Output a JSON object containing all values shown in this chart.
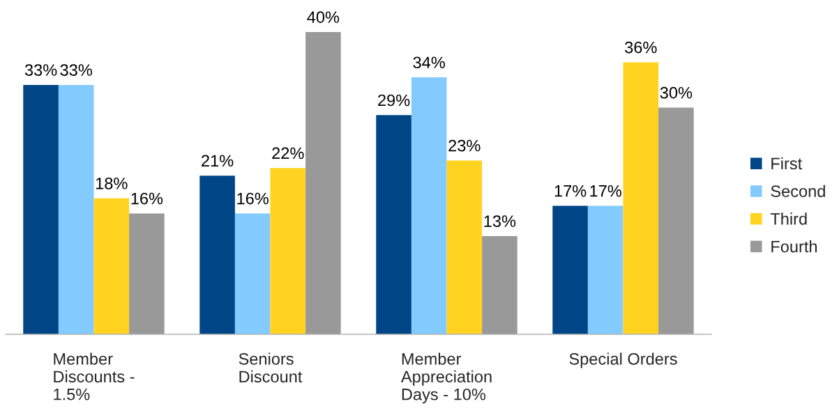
{
  "chart_data": {
    "type": "bar",
    "categories": [
      "Member\nDiscounts -\n1.5%",
      "Seniors\nDiscount",
      "Member\nAppreciation\nDays - 10%",
      "Special Orders"
    ],
    "series": [
      {
        "name": "First",
        "color": "#004586",
        "values": [
          33,
          21,
          29,
          17
        ],
        "value_labels": [
          "33%",
          "21%",
          "29%",
          "17%"
        ]
      },
      {
        "name": "Second",
        "color": "#83caff",
        "values": [
          33,
          16,
          34,
          17
        ],
        "value_labels": [
          "33%",
          "16%",
          "34%",
          "17%"
        ]
      },
      {
        "name": "Third",
        "color": "#ffd320",
        "values": [
          18,
          22,
          23,
          36
        ],
        "value_labels": [
          "18%",
          "22%",
          "23%",
          "36%"
        ]
      },
      {
        "name": "Fourth",
        "color": "#999999",
        "values": [
          16,
          40,
          13,
          30
        ],
        "value_labels": [
          "16%",
          "40%",
          "13%",
          "30%"
        ]
      }
    ],
    "legend": "right"
  }
}
